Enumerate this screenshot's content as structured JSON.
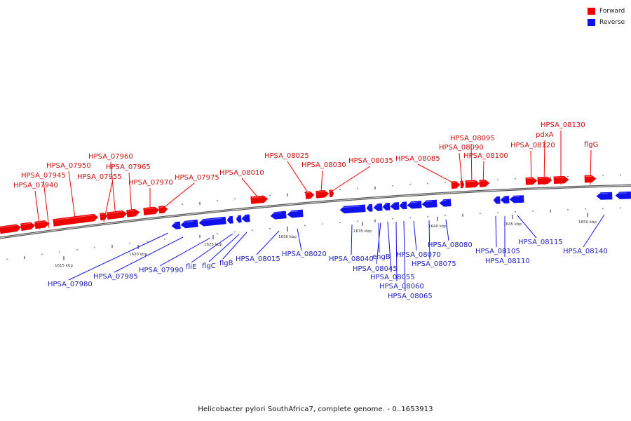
{
  "colors": {
    "forward": "#ee0000",
    "reverse": "#1111ee",
    "forward_text": "#cc1111",
    "reverse_text": "#2222bb",
    "backbone": "#777777",
    "tick": "#222222"
  },
  "legend": [
    {
      "label": "Forward",
      "color": "#ee0000"
    },
    {
      "label": "Reverse",
      "color": "#1111ee"
    }
  ],
  "caption": "Helicobacter pylori SouthAfrica7, complete genome. - 0..1653913",
  "kbp_labels": [
    "1615 kbp",
    "1620 kbp",
    "1625 kbp",
    "1630 kbp",
    "1635 kbp",
    "1640 kbp",
    "1645 kbp",
    "1650 kbp"
  ],
  "forward_genes": [
    "HPSA_07940",
    "HPSA_07945",
    "HPSA_07950",
    "HPSA_07955",
    "HPSA_07960",
    "HPSA_07965",
    "HPSA_07970",
    "HPSA_07975",
    "HPSA_08010",
    "HPSA_08025",
    "HPSA_08030",
    "HPSA_08035",
    "HPSA_08085",
    "HPSA_08090",
    "HPSA_08095",
    "HPSA_08100",
    "HPSA_08120",
    "pdxA",
    "HPSA_08130",
    "flgG"
  ],
  "reverse_genes": [
    "HPSA_07980",
    "HPSA_07985",
    "HPSA_07990",
    "fliE",
    "flgC",
    "flgB",
    "HPSA_08015",
    "HPSA_08020",
    "HPSA_08040",
    "engB",
    "HPSA_08045",
    "HPSA_08055",
    "HPSA_08060",
    "HPSA_08065",
    "HPSA_08070",
    "HPSA_08075",
    "HPSA_08080",
    "HPSA_08105",
    "HPSA_08110",
    "HPSA_08115",
    "HPSA_08140"
  ]
}
